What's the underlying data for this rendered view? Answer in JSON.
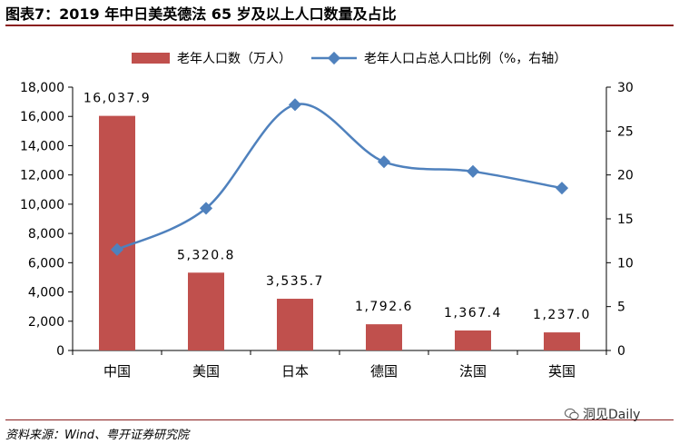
{
  "title": "图表7：2019 年中日美英德法 65 岁及以上人口数量及占比",
  "source": "资料来源：Wind、粤开证券研究院",
  "watermark": "洞见Daily",
  "colors": {
    "bar": "#c0504d",
    "line": "#4f81bd",
    "rule": "#8a1f1f"
  },
  "chart_data": {
    "type": "bar+line",
    "categories": [
      "中国",
      "美国",
      "日本",
      "德国",
      "法国",
      "英国"
    ],
    "series": [
      {
        "name": "老年人口数（万人）",
        "type": "bar",
        "axis": "left",
        "values": [
          16037.9,
          5320.8,
          3535.7,
          1792.6,
          1367.4,
          1237.0
        ],
        "labels": [
          "16,037.9",
          "5,320.8",
          "3,535.7",
          "1,792.6",
          "1,367.4",
          "1,237.0"
        ]
      },
      {
        "name": "老年人口占总人口比例（%，右轴）",
        "type": "line",
        "axis": "right",
        "values": [
          11.5,
          16.2,
          28.0,
          21.5,
          20.4,
          18.5
        ]
      }
    ],
    "y_left": {
      "min": 0,
      "max": 18000,
      "ticks": [
        "0",
        "2,000",
        "4,000",
        "6,000",
        "8,000",
        "10,000",
        "12,000",
        "14,000",
        "16,000",
        "18,000"
      ]
    },
    "y_right": {
      "min": 0,
      "max": 30,
      "ticks": [
        "0",
        "5",
        "10",
        "15",
        "20",
        "25",
        "30"
      ]
    },
    "legend_position": "top"
  }
}
